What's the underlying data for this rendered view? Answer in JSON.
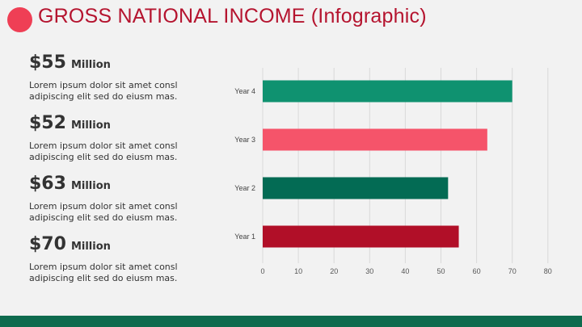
{
  "title": "GROSS NATIONAL INCOME (Infographic)",
  "colors": {
    "title_dot": "#ef3f55",
    "title_text": "#b5142f",
    "footer_bar": "#0e6b4e",
    "bar_year4": "#0f9270",
    "bar_year3": "#f5546a",
    "bar_year2": "#036b54",
    "bar_year1": "#b10f28"
  },
  "stats": [
    {
      "value": "$55",
      "unit": "Million",
      "desc": "Lorem ipsum dolor sit amet consl adipiscing elit sed do eiusm mas."
    },
    {
      "value": "$52",
      "unit": "Million",
      "desc": "Lorem ipsum dolor sit amet consl adipiscing elit sed do eiusm mas."
    },
    {
      "value": "$63",
      "unit": "Million",
      "desc": "Lorem ipsum dolor sit amet consl adipiscing elit sed do eiusm mas."
    },
    {
      "value": "$70",
      "unit": "Million",
      "desc": "Lorem ipsum dolor sit amet consl adipiscing elit sed do eiusm mas."
    }
  ],
  "chart_data": {
    "type": "bar",
    "orientation": "horizontal",
    "categories": [
      "Year 4",
      "Year 3",
      "Year 2",
      "Year 1"
    ],
    "values": [
      70,
      63,
      52,
      55
    ],
    "bar_colors": [
      "#0f9270",
      "#f5546a",
      "#036b54",
      "#b10f28"
    ],
    "xlim": [
      0,
      80
    ],
    "xticks": [
      "0",
      "10",
      "20",
      "30",
      "40",
      "50",
      "60",
      "70",
      "80"
    ],
    "grid": "vertical",
    "legend": "none",
    "title": "",
    "xlabel": "",
    "ylabel": ""
  }
}
